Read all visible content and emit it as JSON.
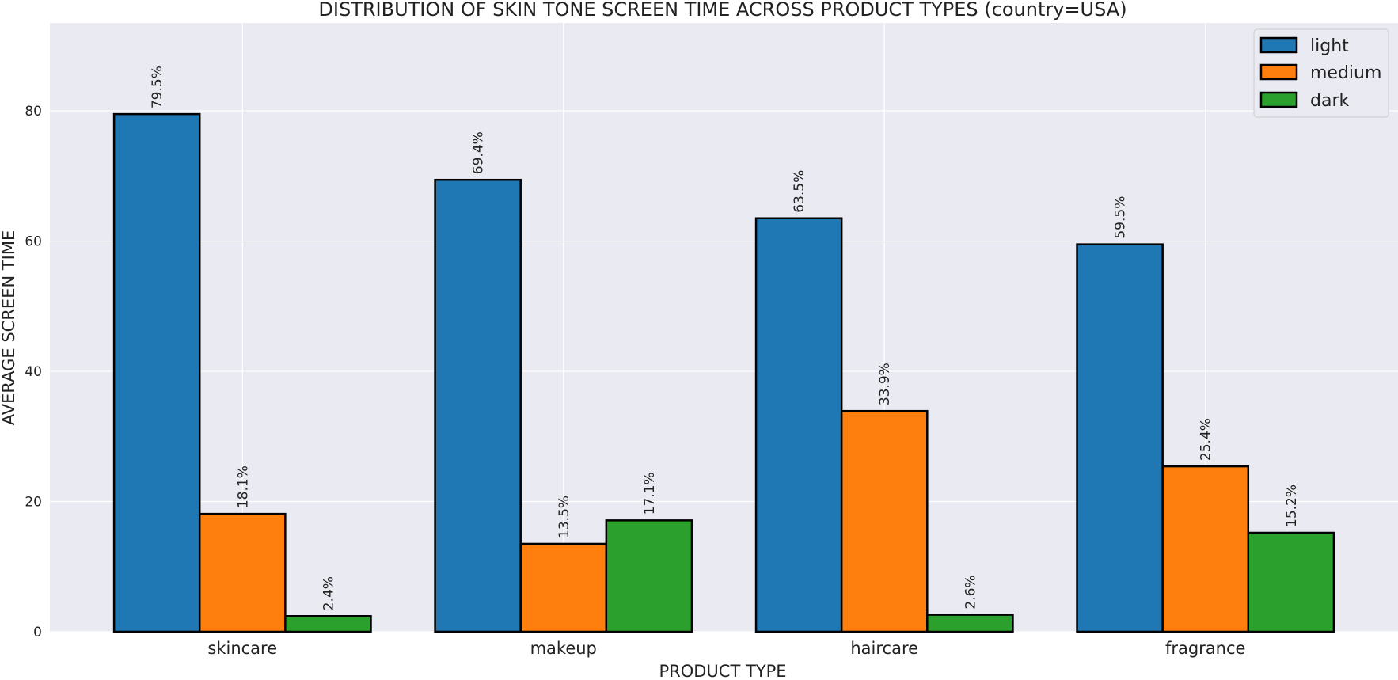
{
  "chart_data": {
    "type": "bar",
    "title": "DISTRIBUTION OF SKIN TONE SCREEN TIME ACROSS PRODUCT TYPES (country=USA)",
    "xlabel": "PRODUCT TYPE",
    "ylabel": "AVERAGE SCREEN TIME",
    "categories": [
      "skincare",
      "makeup",
      "haircare",
      "fragrance"
    ],
    "series": [
      {
        "name": "light",
        "color": "#1f77b4",
        "values": [
          79.5,
          69.4,
          63.5,
          59.5
        ],
        "labels": [
          "79.5%",
          "69.4%",
          "63.5%",
          "59.5%"
        ]
      },
      {
        "name": "medium",
        "color": "#ff7f0e",
        "values": [
          18.1,
          13.5,
          33.9,
          25.4
        ],
        "labels": [
          "18.1%",
          "13.5%",
          "33.9%",
          "25.4%"
        ]
      },
      {
        "name": "dark",
        "color": "#2ca02c",
        "values": [
          2.4,
          17.1,
          2.6,
          15.2
        ],
        "labels": [
          "2.4%",
          "17.1%",
          "2.6%",
          "15.2%"
        ]
      }
    ],
    "ylim": [
      0,
      93.5
    ],
    "yticks": [
      "0",
      "20",
      "40",
      "60",
      "80"
    ],
    "grid": true,
    "legend_position": "top-right",
    "background_color": "#eaeaf2",
    "grid_color": "#ffffff"
  }
}
